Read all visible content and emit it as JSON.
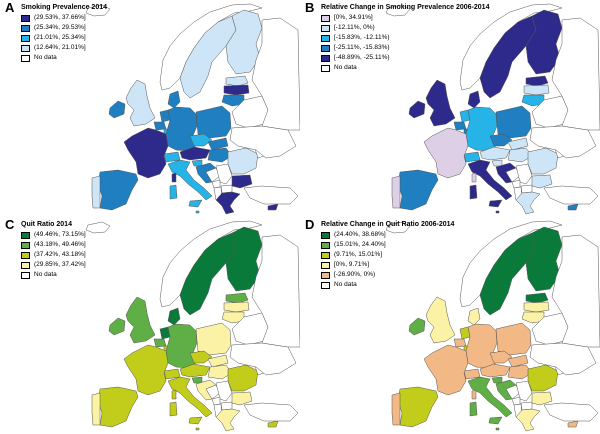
{
  "panels": [
    {
      "letter": "A",
      "title": "Smoking Prevalence 2014",
      "legend": [
        {
          "label": "(29.53%, 37.66%]",
          "color": "#2e2a8c"
        },
        {
          "label": "(25.34%, 29.53%]",
          "color": "#1f7fc0"
        },
        {
          "label": "(21.01%, 25.34%]",
          "color": "#25b3e8"
        },
        {
          "label": "(12.64%, 21.01%]",
          "color": "#cde5f6"
        },
        {
          "label": "No data",
          "color": "#ffffff"
        }
      ]
    },
    {
      "letter": "B",
      "title": "Relative Change in Smoking Prevalence 2006-2014",
      "legend": [
        {
          "label": "[0%, 34.91%]",
          "color": "#ddd0e6"
        },
        {
          "label": "[-12.11%, 0%)",
          "color": "#cde5f6"
        },
        {
          "label": "[-15.83%, -12.11%)",
          "color": "#25b3e8"
        },
        {
          "label": "[-25.11%, -15.83%)",
          "color": "#1f7fc0"
        },
        {
          "label": "[-48.89%, -25.11%)",
          "color": "#2e2a8c"
        },
        {
          "label": "No data",
          "color": "#ffffff"
        }
      ]
    },
    {
      "letter": "C",
      "title": "Quit Ratio 2014",
      "legend": [
        {
          "label": "(49.46%, 73.15%]",
          "color": "#0a7a3a"
        },
        {
          "label": "(43.18%, 49.46%]",
          "color": "#5fae46"
        },
        {
          "label": "(37.42%, 43.18%]",
          "color": "#c2cc1a"
        },
        {
          "label": "(29.85%, 37.42%]",
          "color": "#fbf2a5"
        },
        {
          "label": "No data",
          "color": "#ffffff"
        }
      ]
    },
    {
      "letter": "D",
      "title": "Relative Change in Quit Ratio 2006-2014",
      "legend": [
        {
          "label": "(24.40%, 38.68%]",
          "color": "#0a7a3a"
        },
        {
          "label": "(15.01%, 24.40%]",
          "color": "#5fae46"
        },
        {
          "label": "(9.71%, 15.01%]",
          "color": "#c2cc1a"
        },
        {
          "label": "[0%, 9.71%]",
          "color": "#fbf2a5"
        },
        {
          "label": "[-26.90%, 0%)",
          "color": "#f2b885"
        },
        {
          "label": "No data",
          "color": "#ffffff"
        }
      ]
    }
  ],
  "regions": [
    "iceland",
    "norway",
    "sweden",
    "finland",
    "estonia",
    "latvia",
    "lithuania",
    "ireland",
    "uk",
    "denmark",
    "netherlands",
    "belgium",
    "luxembourg",
    "germany",
    "poland",
    "czechia",
    "slovakia",
    "austria",
    "switzerland",
    "hungary",
    "slovenia",
    "croatia",
    "bosnia",
    "serbia",
    "montenegro",
    "albania",
    "macedonia",
    "greece",
    "bulgaria",
    "romania",
    "moldova",
    "france",
    "spain",
    "portugal",
    "italy",
    "sardinia",
    "corsica",
    "sicily",
    "malta",
    "cyprus",
    "belarus",
    "ukraine",
    "russia",
    "turkey"
  ],
  "map_colors": [
    {
      "iceland": "#ffffff",
      "norway": "#ffffff",
      "sweden": "#cde5f6",
      "finland": "#cde5f6",
      "estonia": "#cde5f6",
      "latvia": "#2e2a8c",
      "lithuania": "#1f7fc0",
      "ireland": "#1f7fc0",
      "uk": "#cde5f6",
      "denmark": "#1f7fc0",
      "netherlands": "#1f7fc0",
      "belgium": "#1f7fc0",
      "luxembourg": "#25b3e8",
      "germany": "#1f7fc0",
      "poland": "#1f7fc0",
      "czechia": "#25b3e8",
      "slovakia": "#1f7fc0",
      "austria": "#2e2a8c",
      "switzerland": "#25b3e8",
      "hungary": "#1f7fc0",
      "slovenia": "#25b3e8",
      "croatia": "#1f7fc0",
      "bosnia": "#ffffff",
      "serbia": "#ffffff",
      "montenegro": "#ffffff",
      "albania": "#ffffff",
      "macedonia": "#ffffff",
      "greece": "#2e2a8c",
      "bulgaria": "#2e2a8c",
      "romania": "#cde5f6",
      "moldova": "#ffffff",
      "france": "#2e2a8c",
      "spain": "#1f7fc0",
      "portugal": "#cde5f6",
      "italy": "#25b3e8",
      "sardinia": "#25b3e8",
      "corsica": "#2e2a8c",
      "sicily": "#25b3e8",
      "malta": "#25b3e8",
      "cyprus": "#2e2a8c",
      "belarus": "#ffffff",
      "ukraine": "#ffffff",
      "russia": "#ffffff",
      "turkey": "#ffffff"
    },
    {
      "iceland": "#ffffff",
      "norway": "#ffffff",
      "sweden": "#2e2a8c",
      "finland": "#2e2a8c",
      "estonia": "#2e2a8c",
      "latvia": "#cde5f6",
      "lithuania": "#25b3e8",
      "ireland": "#2e2a8c",
      "uk": "#2e2a8c",
      "denmark": "#2e2a8c",
      "netherlands": "#25b3e8",
      "belgium": "#1f7fc0",
      "luxembourg": "#1f7fc0",
      "germany": "#25b3e8",
      "poland": "#1f7fc0",
      "czechia": "#1f7fc0",
      "slovakia": "#cde5f6",
      "austria": "#cde5f6",
      "switzerland": "#25b3e8",
      "hungary": "#cde5f6",
      "slovenia": "#cde5f6",
      "croatia": "#2e2a8c",
      "bosnia": "#ffffff",
      "serbia": "#ffffff",
      "montenegro": "#ffffff",
      "albania": "#ffffff",
      "macedonia": "#ffffff",
      "greece": "#cde5f6",
      "bulgaria": "#cde5f6",
      "romania": "#cde5f6",
      "moldova": "#ffffff",
      "france": "#ddd0e6",
      "spain": "#1f7fc0",
      "portugal": "#ddd0e6",
      "italy": "#2e2a8c",
      "sardinia": "#2e2a8c",
      "corsica": "#ddd0e6",
      "sicily": "#2e2a8c",
      "malta": "#2e2a8c",
      "cyprus": "#1f7fc0",
      "belarus": "#ffffff",
      "ukraine": "#ffffff",
      "russia": "#ffffff",
      "turkey": "#ffffff"
    },
    {
      "iceland": "#ffffff",
      "norway": "#ffffff",
      "sweden": "#0a7a3a",
      "finland": "#0a7a3a",
      "estonia": "#5fae46",
      "latvia": "#fbf2a5",
      "lithuania": "#fbf2a5",
      "ireland": "#5fae46",
      "uk": "#5fae46",
      "denmark": "#0a7a3a",
      "netherlands": "#0a7a3a",
      "belgium": "#5fae46",
      "luxembourg": "#c2cc1a",
      "germany": "#5fae46",
      "poland": "#fbf2a5",
      "czechia": "#c2cc1a",
      "slovakia": "#fbf2a5",
      "austria": "#c2cc1a",
      "switzerland": "#c2cc1a",
      "hungary": "#fbf2a5",
      "slovenia": "#5fae46",
      "croatia": "#fbf2a5",
      "bosnia": "#ffffff",
      "serbia": "#ffffff",
      "montenegro": "#ffffff",
      "albania": "#ffffff",
      "macedonia": "#ffffff",
      "greece": "#fbf2a5",
      "bulgaria": "#fbf2a5",
      "romania": "#c2cc1a",
      "moldova": "#ffffff",
      "france": "#c2cc1a",
      "spain": "#c2cc1a",
      "portugal": "#fbf2a5",
      "italy": "#c2cc1a",
      "sardinia": "#c2cc1a",
      "corsica": "#c2cc1a",
      "sicily": "#c2cc1a",
      "malta": "#c2cc1a",
      "cyprus": "#c2cc1a",
      "belarus": "#ffffff",
      "ukraine": "#ffffff",
      "russia": "#ffffff",
      "turkey": "#ffffff"
    },
    {
      "iceland": "#ffffff",
      "norway": "#ffffff",
      "sweden": "#0a7a3a",
      "finland": "#0a7a3a",
      "estonia": "#0a7a3a",
      "latvia": "#fbf2a5",
      "lithuania": "#fbf2a5",
      "ireland": "#5fae46",
      "uk": "#fbf2a5",
      "denmark": "#fbf2a5",
      "netherlands": "#c2cc1a",
      "belgium": "#f2b885",
      "luxembourg": "#c2cc1a",
      "germany": "#f2b885",
      "poland": "#f2b885",
      "czechia": "#f2b885",
      "slovakia": "#f2b885",
      "austria": "#f2b885",
      "switzerland": "#f2b885",
      "hungary": "#f2b885",
      "slovenia": "#5fae46",
      "croatia": "#5fae46",
      "bosnia": "#ffffff",
      "serbia": "#ffffff",
      "montenegro": "#ffffff",
      "albania": "#ffffff",
      "macedonia": "#ffffff",
      "greece": "#fbf2a5",
      "bulgaria": "#fbf2a5",
      "romania": "#c2cc1a",
      "moldova": "#ffffff",
      "france": "#f2b885",
      "spain": "#c2cc1a",
      "portugal": "#f2b885",
      "italy": "#5fae46",
      "sardinia": "#5fae46",
      "corsica": "#f2b885",
      "sicily": "#5fae46",
      "malta": "#5fae46",
      "cyprus": "#f2b885",
      "belarus": "#ffffff",
      "ukraine": "#ffffff",
      "russia": "#ffffff",
      "turkey": "#ffffff"
    }
  ]
}
